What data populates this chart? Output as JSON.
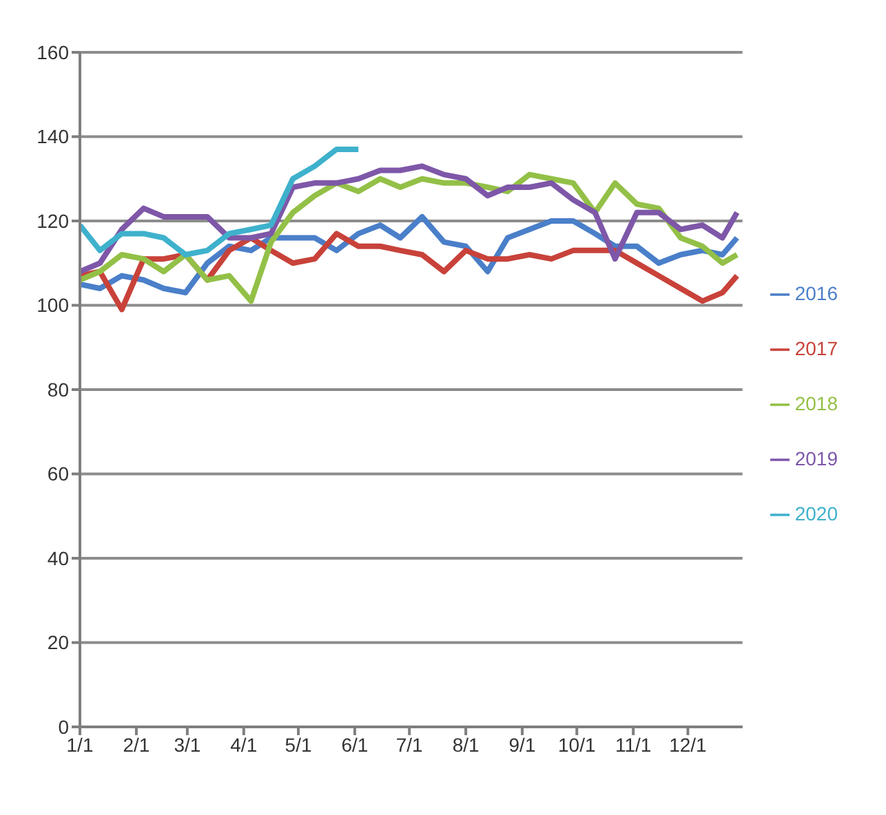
{
  "chart_data": {
    "type": "line",
    "x": [
      "--01-01",
      "--01-12",
      "--01-24",
      "--02-05",
      "--02-16",
      "--02-28",
      "--03-12",
      "--03-24",
      "--04-05",
      "--04-16",
      "--04-28",
      "--05-10",
      "--05-22",
      "--06-03",
      "--06-15",
      "--06-26",
      "--07-08",
      "--07-20",
      "--08-01",
      "--08-13",
      "--08-24",
      "--09-05",
      "--09-17",
      "--09-29",
      "--10-11",
      "--10-22",
      "--11-03",
      "--11-15",
      "--11-27",
      "--12-09",
      "--12-20",
      "--12-28"
    ],
    "series": [
      {
        "name": "2016",
        "color": "#4a7fc9",
        "values": [
          105,
          104,
          107,
          106,
          104,
          103,
          110,
          114,
          113,
          116,
          116,
          116,
          113,
          117,
          119,
          116,
          121,
          115,
          114,
          108,
          116,
          118,
          120,
          120,
          117,
          114,
          114,
          110,
          112,
          113,
          112,
          116
        ]
      },
      {
        "name": "2017",
        "color": "#c8423a",
        "values": [
          107,
          108,
          99,
          111,
          111,
          112,
          106,
          113,
          116,
          113,
          110,
          111,
          117,
          114,
          114,
          113,
          112,
          108,
          113,
          111,
          111,
          112,
          111,
          113,
          113,
          113,
          110,
          107,
          104,
          101,
          103,
          107
        ]
      },
      {
        "name": "2018",
        "color": "#93c047",
        "values": [
          106,
          108,
          112,
          111,
          108,
          112,
          106,
          107,
          101,
          115,
          122,
          126,
          129,
          127,
          130,
          128,
          130,
          129,
          129,
          128,
          127,
          131,
          130,
          129,
          122,
          129,
          124,
          123,
          116,
          114,
          110,
          112
        ]
      },
      {
        "name": "2019",
        "color": "#7e57a8",
        "values": [
          108,
          110,
          118,
          123,
          121,
          121,
          121,
          116,
          116,
          117,
          128,
          129,
          129,
          130,
          132,
          132,
          133,
          131,
          130,
          126,
          128,
          128,
          129,
          125,
          122,
          111,
          122,
          122,
          118,
          119,
          116,
          122
        ]
      },
      {
        "name": "2020",
        "color": "#3eb1cc",
        "values": [
          119,
          113,
          117,
          117,
          116,
          112,
          113,
          117,
          118,
          119,
          130,
          133,
          137,
          137,
          null,
          null,
          null,
          null,
          null,
          null,
          null,
          null,
          null,
          null,
          null,
          null,
          null,
          null,
          null,
          null,
          null,
          null
        ]
      }
    ],
    "xlim": [
      "--01-01",
      "--12-31"
    ],
    "xticks": [
      {
        "value": "--01-01",
        "label": "1/1"
      },
      {
        "value": "--02-01",
        "label": "2/1"
      },
      {
        "value": "--03-01",
        "label": "3/1"
      },
      {
        "value": "--04-01",
        "label": "4/1"
      },
      {
        "value": "--05-01",
        "label": "5/1"
      },
      {
        "value": "--06-01",
        "label": "6/1"
      },
      {
        "value": "--07-01",
        "label": "7/1"
      },
      {
        "value": "--08-01",
        "label": "8/1"
      },
      {
        "value": "--09-01",
        "label": "9/1"
      },
      {
        "value": "--10-01",
        "label": "10/1"
      },
      {
        "value": "--11-01",
        "label": "11/1"
      },
      {
        "value": "--12-01",
        "label": "12/1"
      }
    ],
    "ylim": [
      0,
      160
    ],
    "yticks": [
      0,
      20,
      40,
      60,
      80,
      100,
      120,
      140,
      160
    ],
    "grid": "y",
    "legend": "right",
    "marker": "none",
    "line_style": "solid"
  }
}
